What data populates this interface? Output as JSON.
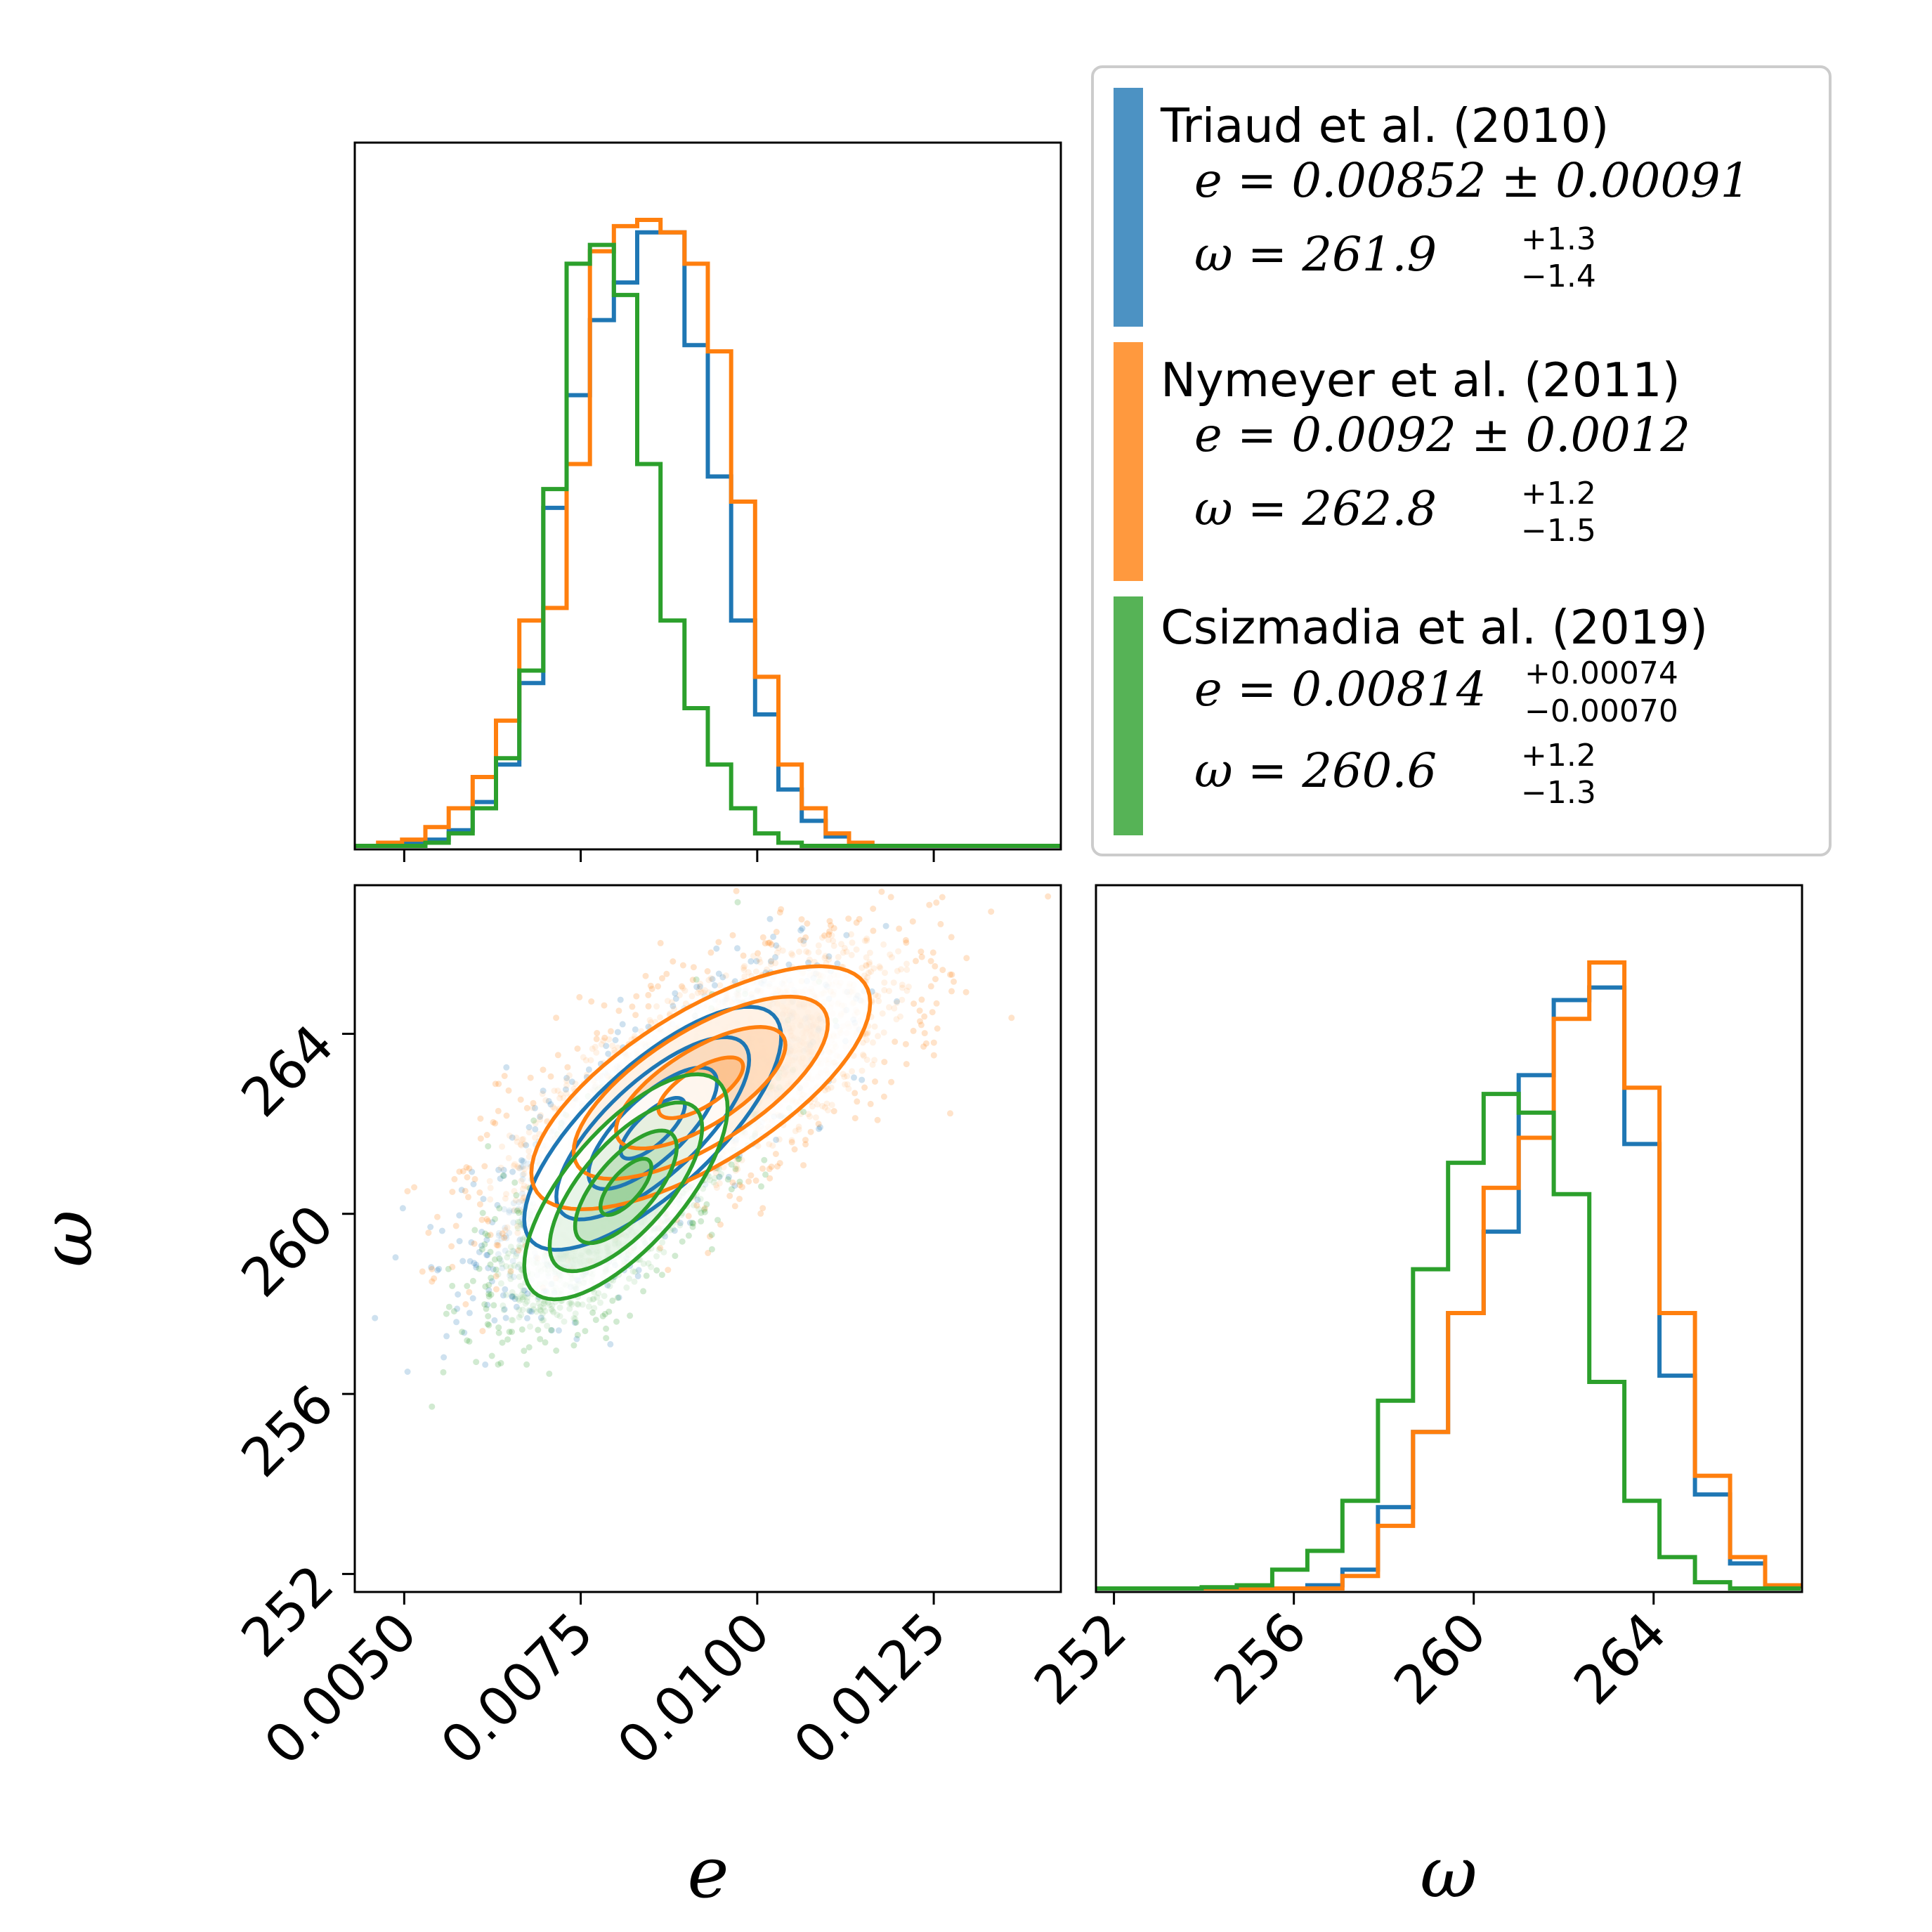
{
  "colors": {
    "triaud": "#1f77b4",
    "nymeyer": "#ff7f0e",
    "csizmadia": "#2ca02c"
  },
  "chart_data": [
    {
      "type": "histogram",
      "panel": "e-marginal",
      "xlim": [
        0.0043,
        0.0143
      ],
      "x_ticks": [
        0.005,
        0.0075,
        0.01,
        0.0125
      ],
      "bin_edges": [
        0.0043,
        0.00463,
        0.00497,
        0.0053,
        0.00563,
        0.00597,
        0.0063,
        0.00663,
        0.00697,
        0.0073,
        0.00763,
        0.00797,
        0.0083,
        0.00863,
        0.00897,
        0.0093,
        0.00963,
        0.00997,
        0.0103,
        0.01063,
        0.01097,
        0.0113,
        0.01163,
        0.01197,
        0.0123,
        0.01263,
        0.01297,
        0.0133,
        0.01363,
        0.01397,
        0.0143
      ],
      "series": [
        {
          "name": "Triaud et al. (2010)",
          "color": "#1f77b4",
          "values": [
            0,
            0,
            0.005,
            0.01,
            0.025,
            0.07,
            0.13,
            0.26,
            0.54,
            0.72,
            0.84,
            0.9,
            0.98,
            0.98,
            0.8,
            0.59,
            0.36,
            0.21,
            0.09,
            0.04,
            0.015,
            0.005,
            0,
            0,
            0,
            0,
            0,
            0,
            0,
            0
          ]
        },
        {
          "name": "Nymeyer et al. (2011)",
          "color": "#ff7f0e",
          "values": [
            0,
            0.005,
            0.01,
            0.03,
            0.06,
            0.11,
            0.2,
            0.36,
            0.38,
            0.61,
            0.95,
            0.99,
            1.0,
            0.98,
            0.93,
            0.79,
            0.55,
            0.27,
            0.13,
            0.06,
            0.02,
            0.005,
            0,
            0,
            0,
            0,
            0,
            0,
            0,
            0
          ]
        },
        {
          "name": "Csizmadia et al. (2019)",
          "color": "#2ca02c",
          "values": [
            0,
            0,
            0,
            0.005,
            0.02,
            0.06,
            0.14,
            0.28,
            0.57,
            0.93,
            0.96,
            0.88,
            0.61,
            0.36,
            0.22,
            0.13,
            0.06,
            0.02,
            0.005,
            0,
            0,
            0,
            0,
            0,
            0,
            0,
            0,
            0,
            0,
            0
          ]
        }
      ]
    },
    {
      "type": "scatter",
      "panel": "e-omega-joint",
      "xlim": [
        0.0043,
        0.0143
      ],
      "ylim": [
        251.6,
        267.3
      ],
      "x_ticks": [
        0.005,
        0.0075,
        0.01,
        0.0125
      ],
      "y_ticks": [
        252,
        256,
        260,
        264
      ],
      "series": [
        {
          "name": "Triaud et al. (2010)",
          "color": "#1f77b4",
          "center": [
            0.00852,
            261.9
          ],
          "sigma": [
            0.00091,
            1.35
          ],
          "rho": 0.75
        },
        {
          "name": "Nymeyer et al. (2011)",
          "color": "#ff7f0e",
          "center": [
            0.0092,
            262.8
          ],
          "sigma": [
            0.0012,
            1.35
          ],
          "rho": 0.7
        },
        {
          "name": "Csizmadia et al. (2019)",
          "color": "#2ca02c",
          "center": [
            0.00814,
            260.6
          ],
          "sigma": [
            0.00072,
            1.25
          ],
          "rho": 0.7
        }
      ]
    },
    {
      "type": "histogram",
      "panel": "omega-marginal",
      "xlim": [
        251.6,
        267.3
      ],
      "x_ticks": [
        252,
        256,
        260,
        264
      ],
      "bin_edges": [
        251.6,
        252.38,
        253.17,
        253.95,
        254.73,
        255.52,
        256.3,
        257.08,
        257.87,
        258.65,
        259.43,
        260.22,
        261.0,
        261.78,
        262.57,
        263.35,
        264.13,
        264.92,
        265.7,
        266.48,
        267.27
      ],
      "series": [
        {
          "name": "Triaud et al. (2010)",
          "color": "#1f77b4",
          "values": [
            0,
            0,
            0,
            0,
            0,
            0,
            0.005,
            0.03,
            0.13,
            0.25,
            0.44,
            0.57,
            0.82,
            0.94,
            0.96,
            0.71,
            0.34,
            0.15,
            0.04,
            0.005
          ]
        },
        {
          "name": "Nymeyer et al. (2011)",
          "color": "#ff7f0e",
          "values": [
            0,
            0,
            0,
            0,
            0,
            0,
            0,
            0.02,
            0.1,
            0.25,
            0.44,
            0.64,
            0.72,
            0.91,
            1.0,
            0.8,
            0.44,
            0.18,
            0.05,
            0.005
          ]
        },
        {
          "name": "Csizmadia et al. (2019)",
          "color": "#2ca02c",
          "values": [
            0,
            0,
            0,
            0.002,
            0.005,
            0.03,
            0.06,
            0.14,
            0.3,
            0.51,
            0.68,
            0.79,
            0.76,
            0.63,
            0.33,
            0.14,
            0.05,
            0.01,
            0,
            0
          ]
        }
      ]
    }
  ],
  "axes": {
    "e_label": "e",
    "omega_label": "ω",
    "e_tick_labels": [
      "0.0050",
      "0.0075",
      "0.0100",
      "0.0125"
    ],
    "omega_tick_labels": [
      "252",
      "256",
      "260",
      "264"
    ]
  },
  "legend": [
    {
      "name": "Triaud et al. (2010)",
      "color": "#1f77b4",
      "e_main": "e = 0.00852 ± 0.00091",
      "w_main": "ω = 261.9",
      "w_sup": "+1.3",
      "w_sub": "−1.4"
    },
    {
      "name": "Nymeyer et al. (2011)",
      "color": "#ff7f0e",
      "e_main": "e = 0.0092 ± 0.0012",
      "w_main": "ω = 262.8",
      "w_sup": "+1.2",
      "w_sub": "−1.5"
    },
    {
      "name": "Csizmadia et al. (2019)",
      "color": "#2ca02c",
      "e_main": "e = 0.00814",
      "e_sup": "+0.00074",
      "e_sub": "−0.00070",
      "w_main": "ω = 260.6",
      "w_sup": "+1.2",
      "w_sub": "−1.3"
    }
  ]
}
